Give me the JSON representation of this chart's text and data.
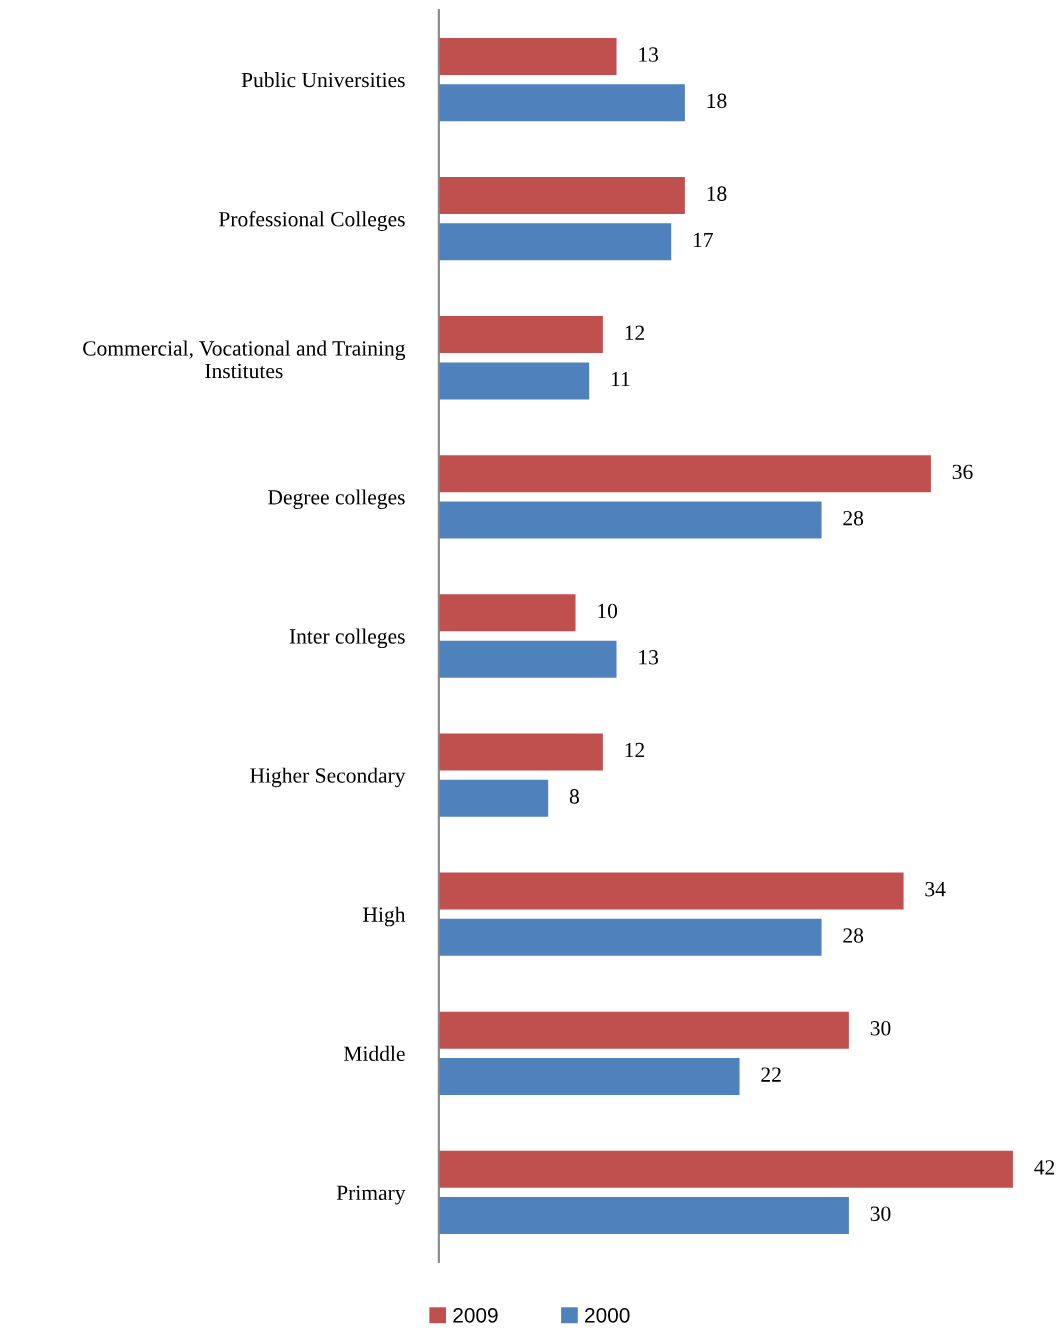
{
  "chart_data": {
    "type": "bar",
    "orientation": "horizontal",
    "categories": [
      "Public Universities",
      "Professional Colleges",
      "Commercial, Vocational and Training\nInstitutes",
      "Degree colleges",
      "Inter colleges",
      "Higher Secondary",
      "High",
      "Middle",
      "Primary"
    ],
    "series": [
      {
        "name": "2009",
        "color": "#c0504d",
        "values": [
          13,
          18,
          12,
          36,
          10,
          12,
          34,
          30,
          42
        ]
      },
      {
        "name": "2000",
        "color": "#4f81bd",
        "values": [
          18,
          17,
          11,
          28,
          13,
          8,
          28,
          22,
          30
        ]
      }
    ],
    "data_labels": true,
    "legend": "bottom",
    "grid": false
  }
}
